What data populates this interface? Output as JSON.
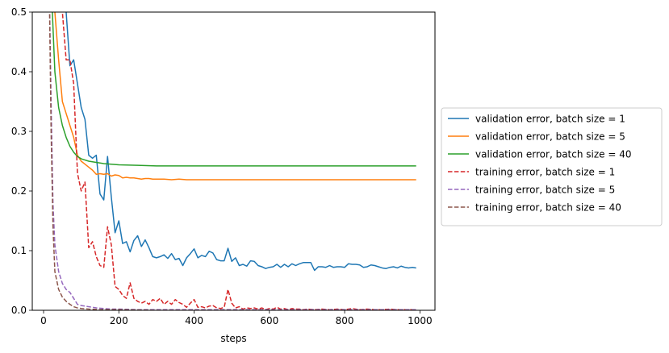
{
  "chart_data": {
    "type": "line",
    "title": "",
    "xlabel": "steps",
    "ylabel": "",
    "xlim": [
      -30,
      1040
    ],
    "ylim": [
      0,
      0.5
    ],
    "xticks": [
      0,
      200,
      400,
      600,
      800,
      1000
    ],
    "yticks": [
      0.0,
      0.1,
      0.2,
      0.3,
      0.4,
      0.5
    ],
    "xtick_labels": [
      "0",
      "200",
      "400",
      "600",
      "800",
      "1000"
    ],
    "ytick_labels": [
      "0.0",
      "0.1",
      "0.2",
      "0.3",
      "0.4",
      "0.5"
    ],
    "grid": false,
    "legend": "outside-right",
    "series": [
      {
        "name": "validation error, batch size = 1",
        "color": "#1f77b4",
        "dash": "solid",
        "points": [
          [
            20,
            0.5
          ],
          [
            40,
            0.55
          ],
          [
            50,
            0.55
          ],
          [
            60,
            0.5
          ],
          [
            70,
            0.41
          ],
          [
            80,
            0.42
          ],
          [
            90,
            0.38
          ],
          [
            100,
            0.34
          ],
          [
            110,
            0.32
          ],
          [
            120,
            0.26
          ],
          [
            130,
            0.255
          ],
          [
            140,
            0.26
          ],
          [
            150,
            0.195
          ],
          [
            160,
            0.185
          ],
          [
            170,
            0.258
          ],
          [
            180,
            0.19
          ],
          [
            190,
            0.13
          ],
          [
            200,
            0.15
          ],
          [
            210,
            0.112
          ],
          [
            220,
            0.115
          ],
          [
            230,
            0.098
          ],
          [
            240,
            0.117
          ],
          [
            250,
            0.125
          ],
          [
            260,
            0.107
          ],
          [
            270,
            0.118
          ],
          [
            280,
            0.105
          ],
          [
            290,
            0.09
          ],
          [
            300,
            0.088
          ],
          [
            310,
            0.09
          ],
          [
            320,
            0.093
          ],
          [
            330,
            0.087
          ],
          [
            340,
            0.095
          ],
          [
            350,
            0.085
          ],
          [
            360,
            0.087
          ],
          [
            370,
            0.075
          ],
          [
            380,
            0.088
          ],
          [
            390,
            0.095
          ],
          [
            400,
            0.103
          ],
          [
            410,
            0.088
          ],
          [
            420,
            0.092
          ],
          [
            430,
            0.09
          ],
          [
            440,
            0.099
          ],
          [
            450,
            0.096
          ],
          [
            460,
            0.085
          ],
          [
            470,
            0.083
          ],
          [
            480,
            0.083
          ],
          [
            490,
            0.104
          ],
          [
            500,
            0.082
          ],
          [
            510,
            0.088
          ],
          [
            520,
            0.075
          ],
          [
            530,
            0.077
          ],
          [
            540,
            0.074
          ],
          [
            550,
            0.083
          ],
          [
            560,
            0.082
          ],
          [
            570,
            0.075
          ],
          [
            580,
            0.073
          ],
          [
            590,
            0.07
          ],
          [
            600,
            0.072
          ],
          [
            610,
            0.073
          ],
          [
            620,
            0.077
          ],
          [
            630,
            0.072
          ],
          [
            640,
            0.077
          ],
          [
            650,
            0.073
          ],
          [
            660,
            0.078
          ],
          [
            670,
            0.075
          ],
          [
            680,
            0.078
          ],
          [
            690,
            0.08
          ],
          [
            700,
            0.08
          ],
          [
            710,
            0.08
          ],
          [
            720,
            0.067
          ],
          [
            730,
            0.073
          ],
          [
            740,
            0.073
          ],
          [
            750,
            0.072
          ],
          [
            760,
            0.075
          ],
          [
            770,
            0.072
          ],
          [
            780,
            0.073
          ],
          [
            790,
            0.073
          ],
          [
            800,
            0.072
          ],
          [
            810,
            0.078
          ],
          [
            820,
            0.077
          ],
          [
            830,
            0.077
          ],
          [
            840,
            0.076
          ],
          [
            850,
            0.072
          ],
          [
            860,
            0.073
          ],
          [
            870,
            0.076
          ],
          [
            880,
            0.075
          ],
          [
            890,
            0.073
          ],
          [
            900,
            0.071
          ],
          [
            910,
            0.07
          ],
          [
            920,
            0.072
          ],
          [
            930,
            0.073
          ],
          [
            940,
            0.071
          ],
          [
            950,
            0.074
          ],
          [
            960,
            0.072
          ],
          [
            970,
            0.071
          ],
          [
            980,
            0.072
          ],
          [
            990,
            0.071
          ]
        ]
      },
      {
        "name": "validation error, batch size = 5",
        "color": "#ff7f0e",
        "dash": "solid",
        "points": [
          [
            20,
            0.55
          ],
          [
            30,
            0.5
          ],
          [
            40,
            0.42
          ],
          [
            50,
            0.35
          ],
          [
            60,
            0.33
          ],
          [
            70,
            0.31
          ],
          [
            80,
            0.29
          ],
          [
            90,
            0.26
          ],
          [
            100,
            0.25
          ],
          [
            110,
            0.245
          ],
          [
            120,
            0.24
          ],
          [
            130,
            0.235
          ],
          [
            140,
            0.228
          ],
          [
            150,
            0.229
          ],
          [
            160,
            0.228
          ],
          [
            170,
            0.229
          ],
          [
            180,
            0.225
          ],
          [
            190,
            0.227
          ],
          [
            200,
            0.226
          ],
          [
            210,
            0.222
          ],
          [
            220,
            0.223
          ],
          [
            230,
            0.222
          ],
          [
            240,
            0.222
          ],
          [
            250,
            0.221
          ],
          [
            260,
            0.22
          ],
          [
            270,
            0.221
          ],
          [
            280,
            0.221
          ],
          [
            290,
            0.22
          ],
          [
            300,
            0.22
          ],
          [
            320,
            0.22
          ],
          [
            340,
            0.219
          ],
          [
            360,
            0.22
          ],
          [
            380,
            0.219
          ],
          [
            400,
            0.219
          ],
          [
            450,
            0.219
          ],
          [
            500,
            0.219
          ],
          [
            600,
            0.219
          ],
          [
            700,
            0.219
          ],
          [
            800,
            0.219
          ],
          [
            900,
            0.219
          ],
          [
            990,
            0.219
          ]
        ]
      },
      {
        "name": "validation error, batch size = 40",
        "color": "#2ca02c",
        "dash": "solid",
        "points": [
          [
            20,
            0.55
          ],
          [
            30,
            0.4
          ],
          [
            40,
            0.34
          ],
          [
            50,
            0.31
          ],
          [
            60,
            0.29
          ],
          [
            70,
            0.275
          ],
          [
            80,
            0.265
          ],
          [
            90,
            0.258
          ],
          [
            100,
            0.254
          ],
          [
            120,
            0.25
          ],
          [
            140,
            0.248
          ],
          [
            160,
            0.246
          ],
          [
            180,
            0.245
          ],
          [
            200,
            0.244
          ],
          [
            250,
            0.243
          ],
          [
            300,
            0.242
          ],
          [
            400,
            0.242
          ],
          [
            500,
            0.242
          ],
          [
            600,
            0.242
          ],
          [
            700,
            0.242
          ],
          [
            800,
            0.242
          ],
          [
            900,
            0.242
          ],
          [
            990,
            0.242
          ]
        ]
      },
      {
        "name": "training error, batch size = 1",
        "color": "#d62728",
        "dash": "dashed",
        "points": [
          [
            40,
            0.55
          ],
          [
            50,
            0.5
          ],
          [
            60,
            0.42
          ],
          [
            70,
            0.42
          ],
          [
            80,
            0.38
          ],
          [
            90,
            0.23
          ],
          [
            100,
            0.2
          ],
          [
            110,
            0.215
          ],
          [
            120,
            0.105
          ],
          [
            130,
            0.115
          ],
          [
            140,
            0.09
          ],
          [
            150,
            0.075
          ],
          [
            160,
            0.072
          ],
          [
            170,
            0.14
          ],
          [
            180,
            0.11
          ],
          [
            190,
            0.04
          ],
          [
            200,
            0.035
          ],
          [
            210,
            0.025
          ],
          [
            220,
            0.02
          ],
          [
            230,
            0.046
          ],
          [
            240,
            0.02
          ],
          [
            250,
            0.015
          ],
          [
            260,
            0.012
          ],
          [
            270,
            0.015
          ],
          [
            280,
            0.01
          ],
          [
            290,
            0.018
          ],
          [
            300,
            0.015
          ],
          [
            310,
            0.02
          ],
          [
            320,
            0.01
          ],
          [
            330,
            0.015
          ],
          [
            340,
            0.01
          ],
          [
            350,
            0.018
          ],
          [
            360,
            0.013
          ],
          [
            370,
            0.01
          ],
          [
            380,
            0.005
          ],
          [
            390,
            0.012
          ],
          [
            400,
            0.018
          ],
          [
            410,
            0.005
          ],
          [
            420,
            0.006
          ],
          [
            430,
            0.004
          ],
          [
            440,
            0.007
          ],
          [
            450,
            0.008
          ],
          [
            460,
            0.004
          ],
          [
            470,
            0.003
          ],
          [
            480,
            0.005
          ],
          [
            490,
            0.035
          ],
          [
            500,
            0.012
          ],
          [
            510,
            0.004
          ],
          [
            520,
            0.006
          ],
          [
            530,
            0.002
          ],
          [
            540,
            0.004
          ],
          [
            550,
            0.003
          ],
          [
            560,
            0.004
          ],
          [
            570,
            0.002
          ],
          [
            580,
            0.004
          ],
          [
            590,
            0.001
          ],
          [
            600,
            0.003
          ],
          [
            610,
            0.002
          ],
          [
            620,
            0.005
          ],
          [
            630,
            0.002
          ],
          [
            640,
            0.003
          ],
          [
            650,
            0.001
          ],
          [
            660,
            0.003
          ],
          [
            670,
            0.002
          ],
          [
            680,
            0.002
          ],
          [
            690,
            0.001
          ],
          [
            700,
            0.002
          ],
          [
            720,
            0.001
          ],
          [
            740,
            0.002
          ],
          [
            760,
            0.001
          ],
          [
            780,
            0.002
          ],
          [
            800,
            0.001
          ],
          [
            820,
            0.003
          ],
          [
            840,
            0.001
          ],
          [
            860,
            0.002
          ],
          [
            880,
            0.001
          ],
          [
            900,
            0.001
          ],
          [
            920,
            0.002
          ],
          [
            940,
            0.001
          ],
          [
            960,
            0.001
          ],
          [
            990,
            0.001
          ]
        ]
      },
      {
        "name": "training error, batch size = 5",
        "color": "#9467bd",
        "dash": "dashed",
        "points": [
          [
            15,
            0.55
          ],
          [
            20,
            0.35
          ],
          [
            25,
            0.18
          ],
          [
            30,
            0.11
          ],
          [
            40,
            0.065
          ],
          [
            50,
            0.045
          ],
          [
            60,
            0.035
          ],
          [
            70,
            0.03
          ],
          [
            80,
            0.02
          ],
          [
            90,
            0.01
          ],
          [
            100,
            0.008
          ],
          [
            120,
            0.006
          ],
          [
            140,
            0.004
          ],
          [
            160,
            0.003
          ],
          [
            180,
            0.002
          ],
          [
            200,
            0.002
          ],
          [
            250,
            0.001
          ],
          [
            300,
            0.001
          ],
          [
            400,
            0.001
          ],
          [
            500,
            0.001
          ],
          [
            600,
            0.001
          ],
          [
            700,
            0.001
          ],
          [
            800,
            0.001
          ],
          [
            900,
            0.001
          ],
          [
            990,
            0.001
          ]
        ]
      },
      {
        "name": "training error, batch size = 40",
        "color": "#8c564b",
        "dash": "dashed",
        "points": [
          [
            15,
            0.55
          ],
          [
            20,
            0.3
          ],
          [
            25,
            0.14
          ],
          [
            30,
            0.065
          ],
          [
            40,
            0.035
          ],
          [
            50,
            0.022
          ],
          [
            60,
            0.015
          ],
          [
            70,
            0.01
          ],
          [
            80,
            0.006
          ],
          [
            90,
            0.004
          ],
          [
            100,
            0.003
          ],
          [
            120,
            0.002
          ],
          [
            150,
            0.001
          ],
          [
            200,
            0.001
          ],
          [
            300,
            0.0
          ],
          [
            500,
            0.0
          ],
          [
            700,
            0.0
          ],
          [
            990,
            0.0
          ]
        ]
      }
    ]
  }
}
